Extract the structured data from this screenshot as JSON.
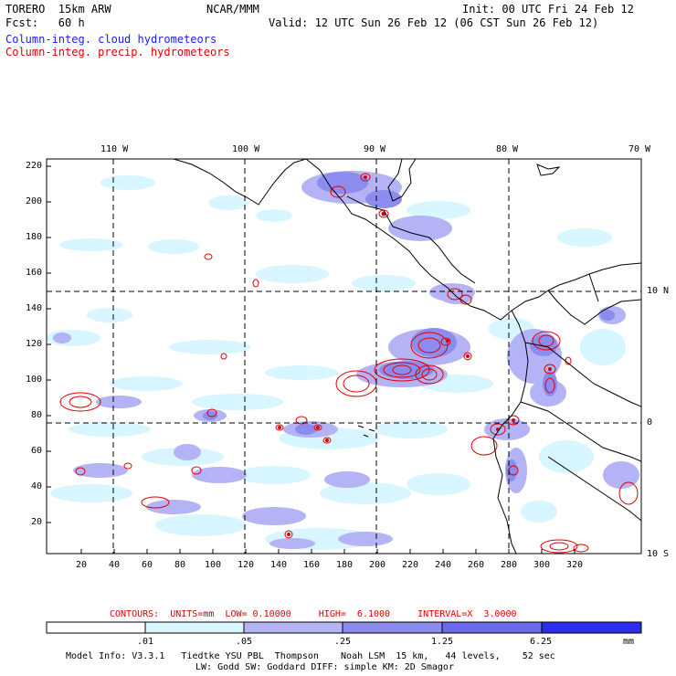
{
  "header": {
    "model_name": "TORERO  15km ARW",
    "org": "NCAR/MMM",
    "init": "Init: 00 UTC Fri 24 Feb 12",
    "fcst": "Fcst:   60 h",
    "valid": "Valid: 12 UTC Sun 26 Feb 12 (06 CST Sun 26 Feb 12)",
    "field1": "Column-integ. cloud hydrometeors",
    "field2": "Column-integ. precip. hydrometeors"
  },
  "colors": {
    "field1_text": "#1a1aff",
    "field2_text": "#e00000",
    "cloud_shades": [
      "#ffffff",
      "#d8f6ff",
      "#b3b3f5",
      "#8c8cef",
      "#6a6aea",
      "#2d2df2"
    ],
    "precip_contour": "#e00000"
  },
  "axes": {
    "lon_labels": [
      "110 W",
      "100 W",
      "90 W",
      "80 W",
      "70 W"
    ],
    "lat_labels": [
      "10 N",
      "0",
      "10 S"
    ],
    "y_ticks": [
      "220",
      "200",
      "180",
      "160",
      "140",
      "120",
      "100",
      "80",
      "60",
      "40",
      "20"
    ],
    "x_ticks": [
      "20",
      "40",
      "60",
      "80",
      "100",
      "120",
      "140",
      "160",
      "180",
      "200",
      "220",
      "240",
      "260",
      "280",
      "300",
      "320"
    ]
  },
  "contours": {
    "label": "CONTOURS:  UNITS=mm  LOW= 0.10000     HIGH=  6.1000     INTERVAL=X  3.0000"
  },
  "colorbar": {
    "unit": "mm",
    "labels": [
      ".01",
      ".05",
      ".25",
      "1.25",
      "6.25"
    ]
  },
  "footer": {
    "line1": "Model Info: V3.3.1   Tiedtke YSU PBL  Thompson    Noah LSM  15 km,   44 levels,    52 sec",
    "line2": "LW: Godd SW: Goddard DIFF: simple KM: 2D Smagor"
  }
}
